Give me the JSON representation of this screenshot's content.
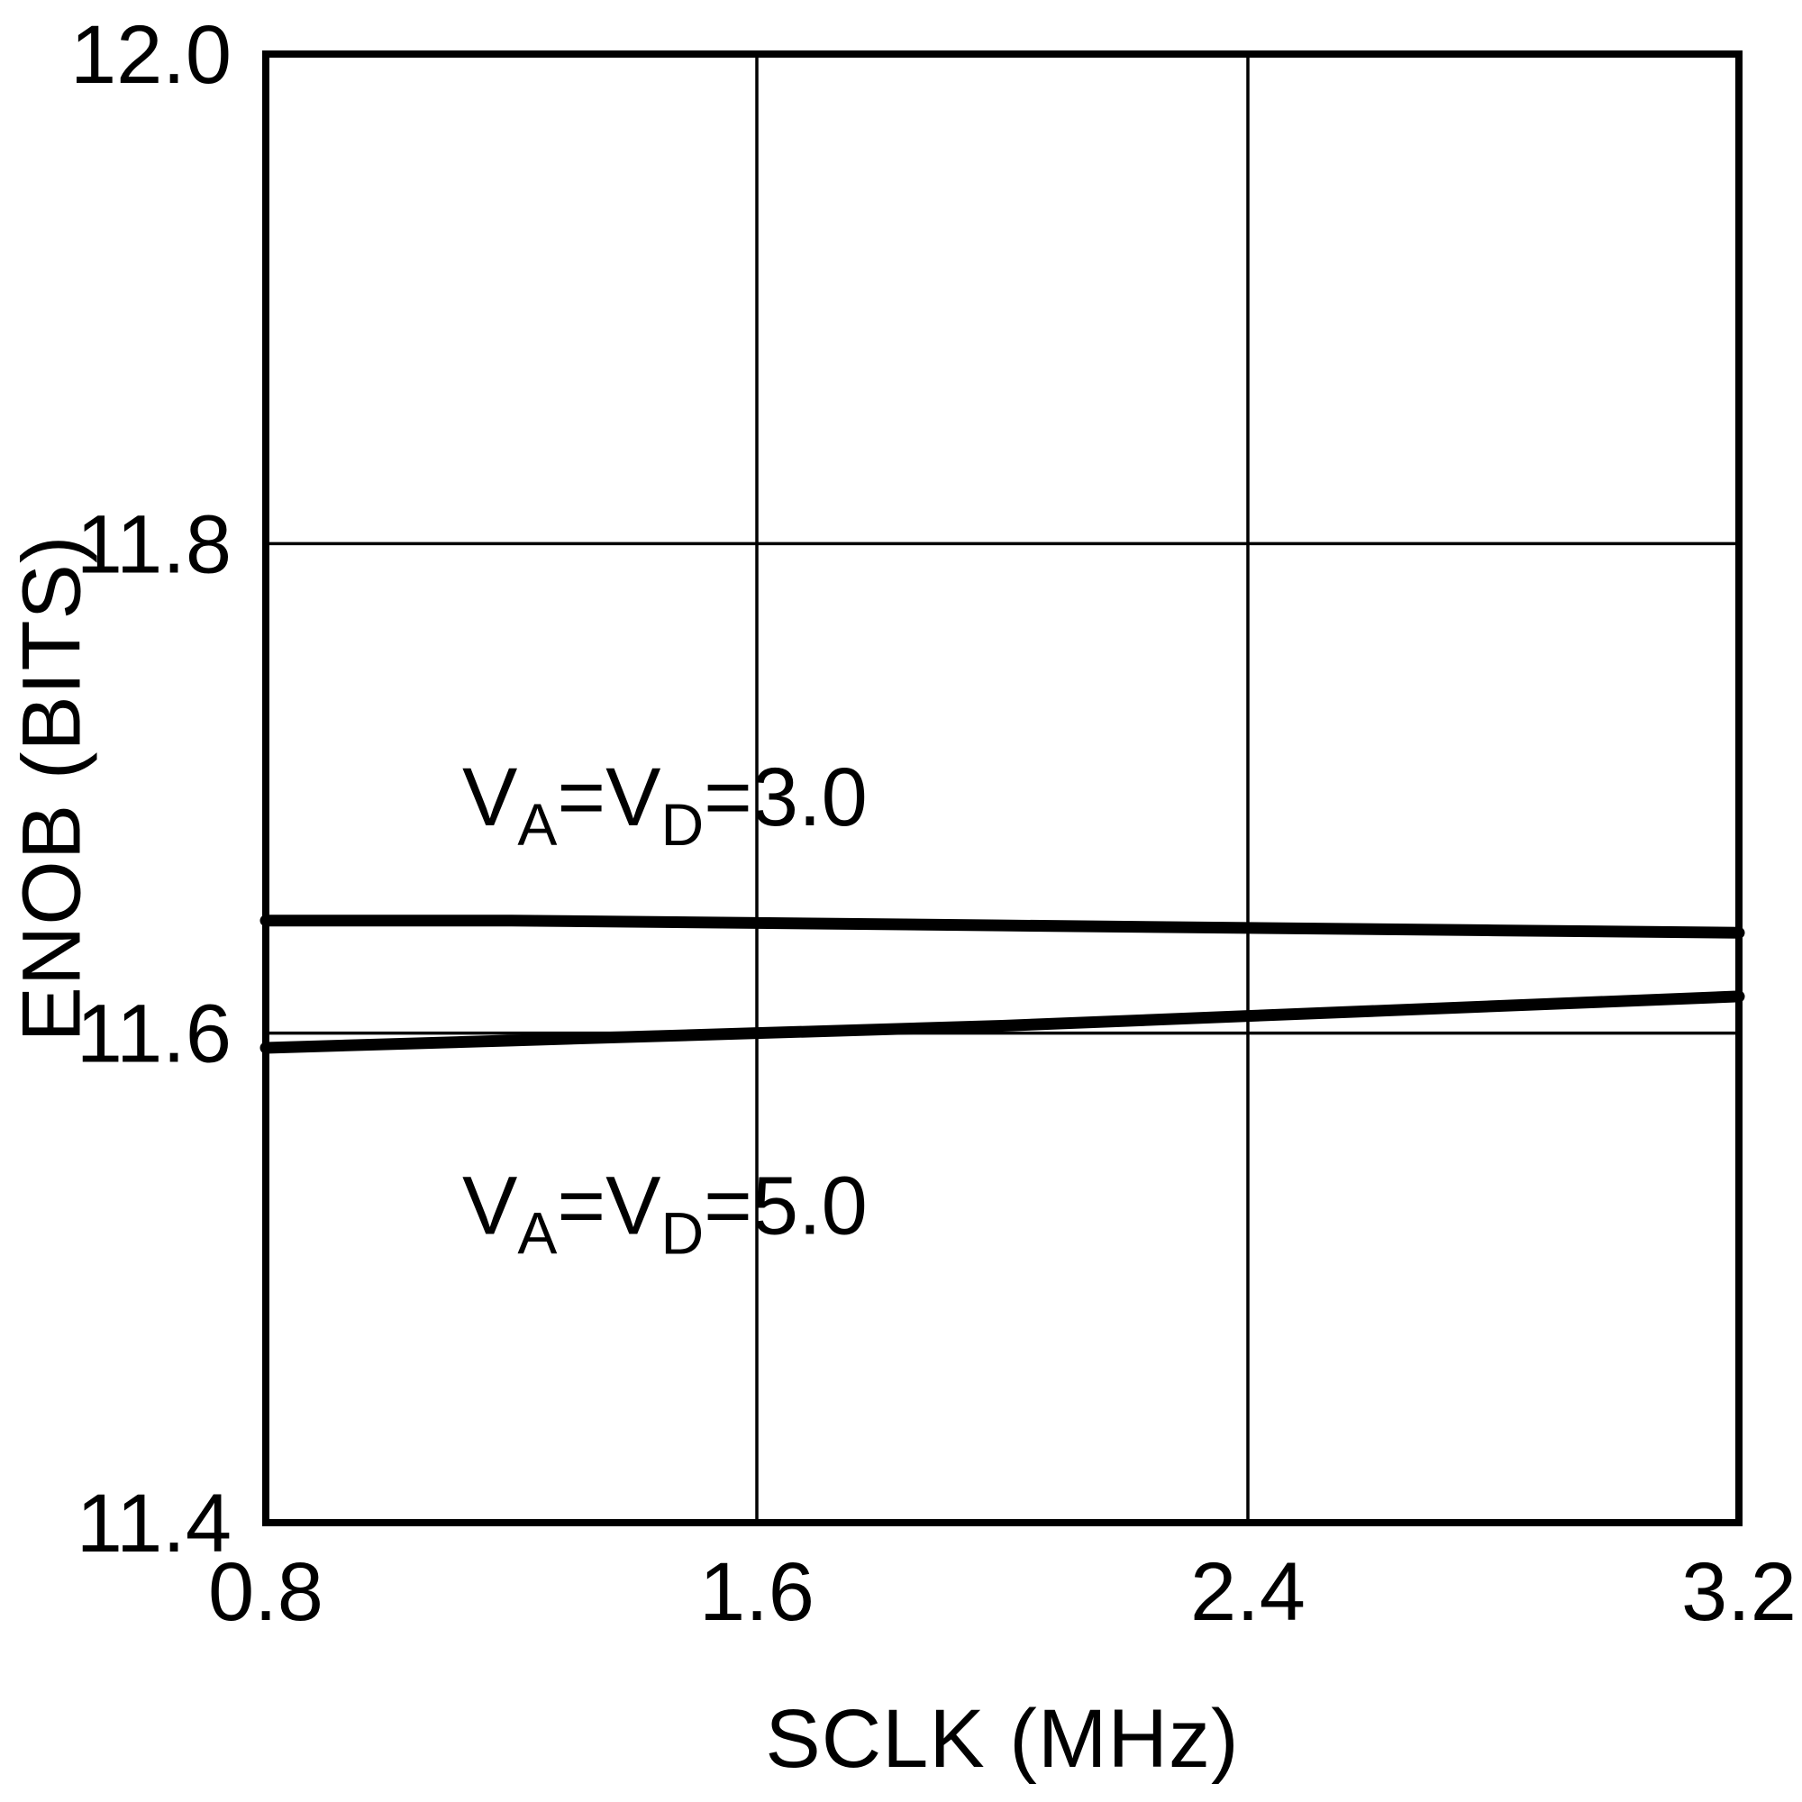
{
  "chart_data": {
    "type": "line",
    "title": "",
    "xlabel": "SCLK (MHz)",
    "ylabel": "ENOB (BITS)",
    "xlim": [
      0.8,
      3.2
    ],
    "ylim": [
      11.4,
      12.0
    ],
    "xticks": [
      0.8,
      1.6,
      2.4,
      3.2
    ],
    "yticks": [
      11.4,
      11.6,
      11.8,
      12.0
    ],
    "grid": true,
    "legend_position": "inline-annotations",
    "colors": {
      "line": "#000000",
      "grid": "#000000",
      "frame": "#000000",
      "background": "#ffffff"
    },
    "series": [
      {
        "name": "VA=VD=3.0",
        "x": [
          0.8,
          1.2,
          1.6,
          2.0,
          2.4,
          2.8,
          3.2
        ],
        "y": [
          11.646,
          11.646,
          11.645,
          11.644,
          11.643,
          11.642,
          11.641
        ]
      },
      {
        "name": "VA=VD=5.0",
        "x": [
          0.8,
          1.2,
          1.6,
          2.0,
          2.4,
          2.8,
          3.2
        ],
        "y": [
          11.594,
          11.597,
          11.6,
          11.603,
          11.607,
          11.611,
          11.615
        ]
      }
    ],
    "annotations": [
      {
        "name": "series-label-va-vd-3p0",
        "x": 1.12,
        "y": 11.685,
        "parts": [
          {
            "t": "V"
          },
          {
            "t": "A",
            "sub": true
          },
          {
            "t": "=V"
          },
          {
            "t": "D",
            "sub": true
          },
          {
            "t": "=3.0"
          }
        ]
      },
      {
        "name": "series-label-va-vd-5p0",
        "x": 1.12,
        "y": 11.518,
        "parts": [
          {
            "t": "V"
          },
          {
            "t": "A",
            "sub": true
          },
          {
            "t": "=V"
          },
          {
            "t": "D",
            "sub": true
          },
          {
            "t": "=5.0"
          }
        ]
      }
    ]
  }
}
